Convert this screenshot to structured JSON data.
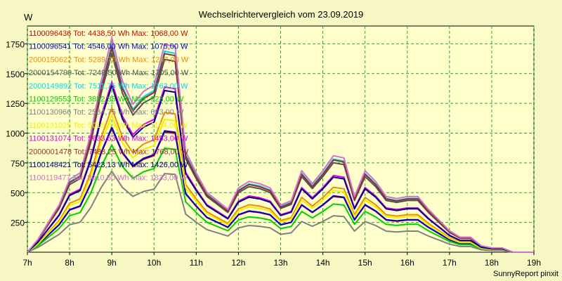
{
  "chart_data": {
    "type": "line",
    "title": "Wechselrichtervergleich vom 23.09.2019",
    "ylabel": "W",
    "footer": "SunnyReport pinxit",
    "xlim": [
      7,
      19
    ],
    "ylim": [
      0,
      1900
    ],
    "grid": true,
    "legend_position": "top-left",
    "x_ticks": [
      {
        "v": 7,
        "label": "7h"
      },
      {
        "v": 8,
        "label": "8h"
      },
      {
        "v": 9,
        "label": "9h"
      },
      {
        "v": 10,
        "label": "10h"
      },
      {
        "v": 11,
        "label": "11h"
      },
      {
        "v": 12,
        "label": "12h"
      },
      {
        "v": 13,
        "label": "13h"
      },
      {
        "v": 14,
        "label": "14h"
      },
      {
        "v": 15,
        "label": "15h"
      },
      {
        "v": 16,
        "label": "16h"
      },
      {
        "v": 17,
        "label": "17h"
      },
      {
        "v": 18,
        "label": "18h"
      },
      {
        "v": 19,
        "label": "19h"
      }
    ],
    "y_ticks": [
      {
        "v": 250,
        "label": "250"
      },
      {
        "v": 500,
        "label": "500"
      },
      {
        "v": 750,
        "label": "750"
      },
      {
        "v": 1000,
        "label": "1000"
      },
      {
        "v": 1250,
        "label": "1250"
      },
      {
        "v": 1500,
        "label": "1500"
      },
      {
        "v": 1750,
        "label": "1750"
      }
    ],
    "x": [
      7,
      7.25,
      7.5,
      7.75,
      8,
      8.25,
      8.5,
      8.75,
      9,
      9.25,
      9.5,
      9.75,
      10,
      10.25,
      10.5,
      10.75,
      11,
      11.25,
      11.5,
      11.75,
      12,
      12.25,
      12.5,
      12.75,
      13,
      13.25,
      13.5,
      13.75,
      14,
      14.25,
      14.5,
      14.75,
      15,
      15.25,
      15.5,
      15.75,
      16,
      16.25,
      16.5,
      16.75,
      17,
      17.25,
      17.5,
      17.75,
      18,
      18.25,
      18.5,
      18.75,
      19
    ],
    "shape": [
      0,
      0.06,
      0.14,
      0.22,
      0.34,
      0.37,
      0.55,
      0.8,
      1.0,
      0.8,
      0.69,
      0.75,
      0.78,
      0.97,
      0.96,
      0.47,
      0.37,
      0.28,
      0.24,
      0.2,
      0.3,
      0.33,
      0.32,
      0.3,
      0.22,
      0.24,
      0.38,
      0.32,
      0.38,
      0.45,
      0.44,
      0.26,
      0.38,
      0.33,
      0.26,
      0.25,
      0.26,
      0.26,
      0.2,
      0.15,
      0.1,
      0.07,
      0.07,
      0.03,
      0.02,
      0.02,
      0.0,
      0.0,
      0.0
    ],
    "series": [
      {
        "name": "1100096436",
        "tot": "4438,50",
        "max": "1068,00",
        "color": "#cc0000",
        "scale": 1040
      },
      {
        "name": "1100096541",
        "tot": "4546,00",
        "max": "1075,00",
        "color": "#0000cc",
        "scale": 1050
      },
      {
        "name": "2000150622",
        "tot": "5289,75",
        "max": "1247,00",
        "color": "#f08c00",
        "scale": 1210
      },
      {
        "name": "2000154799",
        "tot": "7249,50",
        "max": "1705,00",
        "color": "#505050",
        "scale": 1670
      },
      {
        "name": "2000149892",
        "tot": "7511,75",
        "max": "1763,00",
        "color": "#00d8e8",
        "scale": 1740
      },
      {
        "name": "1100129553",
        "tot": "3852,88",
        "max": "923,00",
        "color": "#00d000",
        "scale": 900
      },
      {
        "name": "1100130966",
        "tot": "2584,75",
        "max": "693,00",
        "color": "#808080",
        "scale": 680
      },
      {
        "name": "1100131025",
        "tot": "5015,88",
        "max": "1184,00",
        "color": "#f0f000",
        "scale": 1150
      },
      {
        "name": "1100131074",
        "tot": "5633,63",
        "max": "1453,00",
        "color": "#e000e0",
        "scale": 1430
      },
      {
        "name": "2000001478",
        "tot": "7488,25",
        "max": "1768,00",
        "color": "#903030",
        "scale": 1720
      },
      {
        "name": "1100148421",
        "tot": "5423,13",
        "max": "1426,00",
        "color": "#000080",
        "scale": 1400
      },
      {
        "name": "1100119477",
        "tot": "8010,50",
        "max": "1833,00",
        "color": "#d070d0",
        "scale": 1800
      }
    ],
    "legend_tot_label": "Tot:",
    "legend_tot_unit": "Wh",
    "legend_max_label": "Max:",
    "legend_max_unit": "W"
  }
}
